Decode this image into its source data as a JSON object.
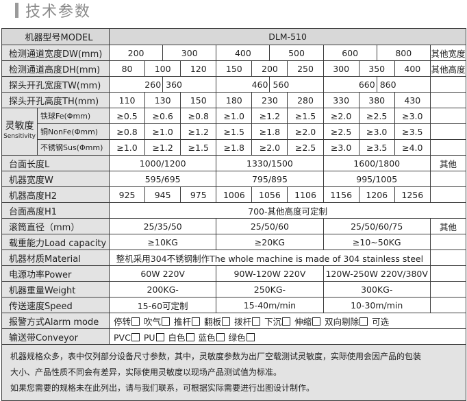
{
  "page_title": "技术参数",
  "model": {
    "label": "机器型号MODEL",
    "value": "DLM-510"
  },
  "dw": {
    "label": "检测通道宽度DW(mm)",
    "values": [
      "200",
      "300",
      "400",
      "500",
      "600",
      "800"
    ],
    "extra": "其他宽度"
  },
  "dh": {
    "label": "检测通道高度DH(mm)",
    "values": [
      "80",
      "100",
      "120",
      "150",
      "200",
      "250",
      "300",
      "350",
      "400"
    ],
    "extra": "其他高度"
  },
  "tw": {
    "label": "探头开孔宽度TW(mm)",
    "values": [
      "260",
      "360",
      "460",
      "560",
      "660",
      "860"
    ],
    "extra": ""
  },
  "th": {
    "label": "探头开孔高度TH(mm)",
    "values": [
      "110",
      "130",
      "150",
      "180",
      "230",
      "280",
      "330",
      "380",
      "430"
    ],
    "extra": ""
  },
  "sensitivity": {
    "label": "灵敏度",
    "label_en": "Sensitivity",
    "rows": [
      {
        "label": "铁球Fe(Φmm)",
        "values": [
          "≥0.5",
          "≥0.6",
          "≥0.8",
          "≥1.0",
          "≥1.2",
          "≥1.5",
          "≥2.0",
          "≥2.5",
          "≥3.0"
        ],
        "extra": ""
      },
      {
        "label": "铜NonFe(Φmm)",
        "values": [
          "≥0.8",
          "≥1.0",
          "≥1.2",
          "≥1.5",
          "≥1.8",
          "≥2.0",
          "≥2.5",
          "≥3.0",
          "≥3.5"
        ],
        "extra": ""
      },
      {
        "label": "不锈钢Sus(Φmm)",
        "values": [
          "≥1.0",
          "≥1.2",
          "≥1.5",
          "≥1.8",
          "≥2.0",
          "≥2.5",
          "≥3.0",
          "≥3.5",
          "≥4.0"
        ],
        "extra": ""
      }
    ]
  },
  "length": {
    "label": "台面长度L",
    "values": [
      "1000/1200",
      "1330/1500",
      "1600/1800"
    ],
    "extra": "其他"
  },
  "width": {
    "label": "机器宽度W",
    "values": [
      "595/695",
      "795/895",
      "995/1005"
    ],
    "extra": ""
  },
  "h2": {
    "label": "机器高度H2",
    "values": [
      "925",
      "945",
      "975",
      "1006",
      "1056",
      "1106",
      "1156",
      "1206",
      "1256"
    ],
    "extra": ""
  },
  "h1": {
    "label": "台面高度H1",
    "value": "700-其他高度可定制"
  },
  "roller": {
    "label": "滚筒直径（mm）",
    "values": [
      "25/35/50",
      "25/50/60",
      "25/50/60/75"
    ],
    "extra": "其他"
  },
  "load": {
    "label": "载重能力Load capacity",
    "values": [
      "≥10KG",
      "≥20KG",
      "≥10~50KG"
    ],
    "extra": ""
  },
  "material": {
    "label": "机器材质Material",
    "value": "整机采用304不锈钢制作The whole machine is made of 304 stainless steel",
    "extra": ""
  },
  "power": {
    "label": "电源功率Power",
    "values": [
      "60W 220V",
      "90W-120W 220V",
      "120W-250W  220V/380V"
    ],
    "extra": ""
  },
  "weight": {
    "label": "机器重量Weight",
    "values": [
      "200KG-",
      "250KG-",
      "300KG-"
    ],
    "extra": ""
  },
  "speed": {
    "label": "传送速度Speed",
    "values": [
      "15-60可定制",
      "15-40m/min",
      "10-30m/min"
    ],
    "extra": ""
  },
  "alarm": {
    "label": "报警方式Alarm mode",
    "options": [
      "停转",
      "吹气",
      "推杆",
      "翻板",
      "拨杆",
      "下沉",
      "伸缩",
      "双向剔除"
    ],
    "suffix": "可选"
  },
  "conveyor": {
    "label": "输送带Conveyor",
    "options": [
      "PVC",
      "PU",
      "白色",
      "蓝色",
      "绿色"
    ]
  },
  "notes": [
    "机器规格众多，表中仅列部分设备尺寸参数，其中，灵敏度参数为出厂空载测试灵敏度，实际使用会因产品的包装",
    "大小、产品性质不同会有差异，实际使用灵敏度以现场产品测试值为标准。",
    "如果您需要的规格未在此列出，请与我们联系，可根据实际需要进行出图设计制作。"
  ]
}
